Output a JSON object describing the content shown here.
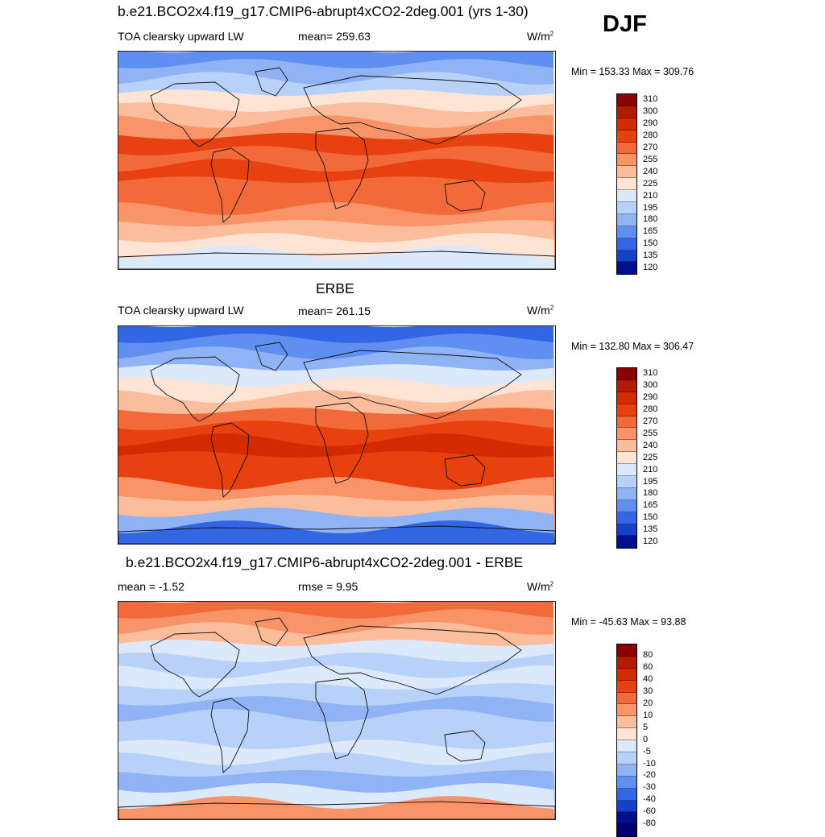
{
  "season": "DJF",
  "panels": [
    {
      "title": "b.e21.BCO2x4.f19_g17.CMIP6-abrupt4xCO2-2deg.001 (yrs 1-30)",
      "variable": "TOA clearsky upward LW",
      "stat": "mean= 259.63",
      "units": "W/m",
      "units_sup": "2",
      "minmax": "Min = 153.33 Max = 309.76",
      "colorbar": {
        "labels": [
          "310",
          "300",
          "290",
          "280",
          "270",
          "255",
          "240",
          "225",
          "210",
          "195",
          "180",
          "165",
          "150",
          "135",
          "120"
        ],
        "colors": [
          "#8b0000",
          "#b31b00",
          "#d42a00",
          "#e8400e",
          "#f26a3a",
          "#f99468",
          "#fbbd9b",
          "#fde4d4",
          "#dce9fb",
          "#b8d1f8",
          "#8fb3f4",
          "#5f8ff0",
          "#3266e4",
          "#1540c8",
          "#00108c"
        ]
      }
    },
    {
      "title": "ERBE",
      "variable": "TOA clearsky upward LW",
      "stat": "mean= 261.15",
      "units": "W/m",
      "units_sup": "2",
      "minmax": "Min = 132.80 Max = 306.47",
      "colorbar": {
        "labels": [
          "310",
          "300",
          "290",
          "280",
          "270",
          "255",
          "240",
          "225",
          "210",
          "195",
          "180",
          "165",
          "150",
          "135",
          "120"
        ],
        "colors": [
          "#8b0000",
          "#b31b00",
          "#d42a00",
          "#e8400e",
          "#f26a3a",
          "#f99468",
          "#fbbd9b",
          "#fde4d4",
          "#dce9fb",
          "#b8d1f8",
          "#8fb3f4",
          "#5f8ff0",
          "#3266e4",
          "#1540c8",
          "#00108c"
        ]
      }
    },
    {
      "title": "b.e21.BCO2x4.f19_g17.CMIP6-abrupt4xCO2-2deg.001 - ERBE",
      "stat_left": "mean =  -1.52",
      "stat": "rmse =   9.95",
      "units": "W/m",
      "units_sup": "2",
      "minmax": "Min = -45.63 Max =  93.88",
      "colorbar": {
        "labels": [
          "80",
          "60",
          "40",
          "30",
          "20",
          "10",
          "5",
          "0",
          "-5",
          "-10",
          "-20",
          "-30",
          "-40",
          "-60",
          "-80"
        ],
        "colors": [
          "#8b0000",
          "#b31b00",
          "#d42a00",
          "#e8400e",
          "#f26a3a",
          "#f99468",
          "#fbbd9b",
          "#fde4d4",
          "#dce9fb",
          "#b8d1f8",
          "#8fb3f4",
          "#5f8ff0",
          "#3266e4",
          "#1540c8",
          "#00108c",
          "#000070"
        ]
      }
    }
  ],
  "map_fields": [
    {
      "rows": [
        "#5f8ff0",
        "#8fb3f4",
        "#b8d1f8",
        "#fde4d4",
        "#fbbd9b",
        "#f99468",
        "#e8400e",
        "#f26a3a",
        "#e8400e",
        "#f26a3a",
        "#f26a3a",
        "#f99468",
        "#fbbd9b",
        "#fde4d4",
        "#dce9fb"
      ]
    },
    {
      "rows": [
        "#3266e4",
        "#5f8ff0",
        "#8fb3f4",
        "#dce9fb",
        "#fde4d4",
        "#fbbd9b",
        "#f26a3a",
        "#e8400e",
        "#d42a00",
        "#e8400e",
        "#e8400e",
        "#f99468",
        "#fbbd9b",
        "#8fb3f4",
        "#3266e4"
      ]
    },
    {
      "rows": [
        "#f26a3a",
        "#f99468",
        "#fbbd9b",
        "#dce9fb",
        "#b8d1f8",
        "#dce9fb",
        "#b8d1f8",
        "#8fb3f4",
        "#b8d1f8",
        "#b8d1f8",
        "#dce9fb",
        "#b8d1f8",
        "#8fb3f4",
        "#dce9fb",
        "#f99468"
      ]
    }
  ]
}
